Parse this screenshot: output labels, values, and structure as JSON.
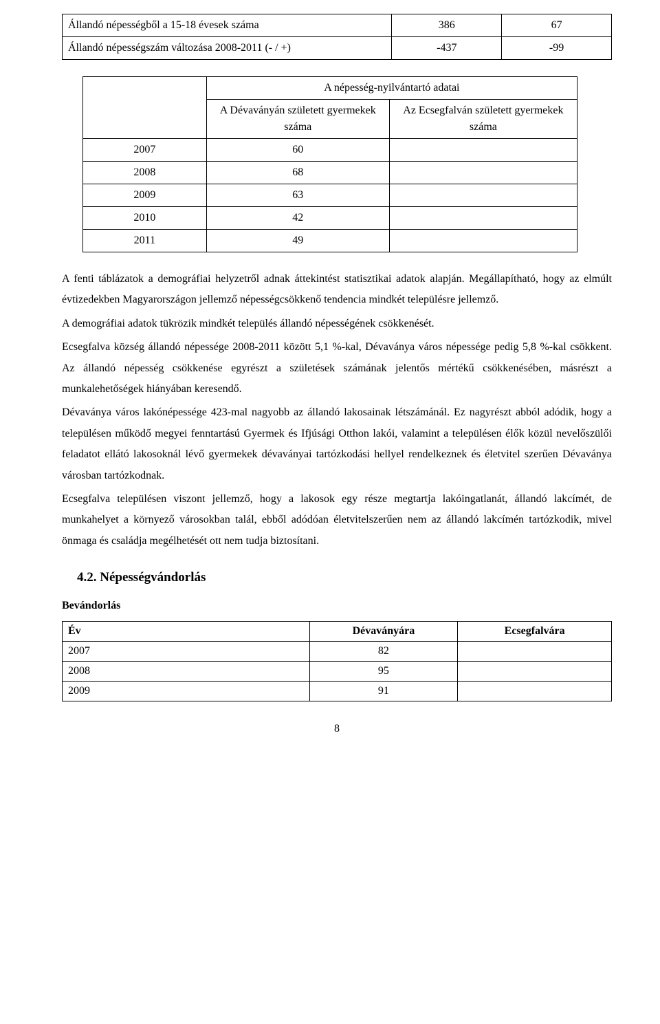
{
  "table1": {
    "rows": [
      {
        "label": "Állandó népességből a 15-18 évesek száma",
        "v1": "386",
        "v2": "67"
      },
      {
        "label": "Állandó népességszám változása 2008-2011 (- / +)",
        "v1": "-437",
        "v2": "-99"
      }
    ]
  },
  "table2": {
    "title": "A népesség-nyilvántartó adatai",
    "col1": "A Dévaványán született gyermekek száma",
    "col2": "Az Ecsegfalván született gyermekek száma",
    "rows": [
      {
        "year": "2007",
        "v1": "60",
        "v2": ""
      },
      {
        "year": "2008",
        "v1": "68",
        "v2": ""
      },
      {
        "year": "2009",
        "v1": "63",
        "v2": ""
      },
      {
        "year": "2010",
        "v1": "42",
        "v2": ""
      },
      {
        "year": "2011",
        "v1": "49",
        "v2": ""
      }
    ]
  },
  "paragraphs": {
    "p1": "A fenti táblázatok a demográfiai helyzetről adnak áttekintést statisztikai adatok alapján. Megállapítható, hogy az elmúlt évtizedekben Magyarországon jellemző népességcsökkenő tendencia mindkét településre jellemző.",
    "p2": "A demográfiai adatok tükrözik mindkét település állandó népességének csökkenését.",
    "p3": "Ecsegfalva község állandó népessége 2008-2011 között 5,1 %-kal, Dévaványa város népessége pedig 5,8 %-kal csökkent. Az állandó népesség csökkenése egyrészt a születések számának jelentős mértékű csökkenésében, másrészt a munkalehetőségek hiányában keresendő.",
    "p4": "Dévaványa város lakónépessége 423-mal nagyobb az állandó lakosainak létszámánál. Ez nagyrészt abból adódik, hogy a településen működő megyei fenntartású Gyermek és Ifjúsági Otthon lakói, valamint a településen élők közül nevelőszülői feladatot ellátó lakosoknál lévő gyermekek dévaványai tartózkodási hellyel rendelkeznek és életvitel szerűen Dévaványa városban tartózkodnak.",
    "p5": "Ecsegfalva településen viszont jellemző, hogy a lakosok egy része megtartja lakóingatlanát, állandó lakcímét, de munkahelyet a környező városokban talál, ebből adódóan életvitelszerűen nem az állandó lakcímén tartózkodik, mivel önmaga és családja megélhetését ott nem tudja biztosítani."
  },
  "section": {
    "heading": "4.2. Népességvándorlás",
    "sub": "Bevándorlás"
  },
  "table3": {
    "headers": {
      "c1": "Év",
      "c2": "Dévaványára",
      "c3": "Ecsegfalvára"
    },
    "rows": [
      {
        "year": "2007",
        "v1": "82",
        "v2": ""
      },
      {
        "year": "2008",
        "v1": "95",
        "v2": ""
      },
      {
        "year": "2009",
        "v1": "91",
        "v2": ""
      }
    ]
  },
  "pageNumber": "8"
}
